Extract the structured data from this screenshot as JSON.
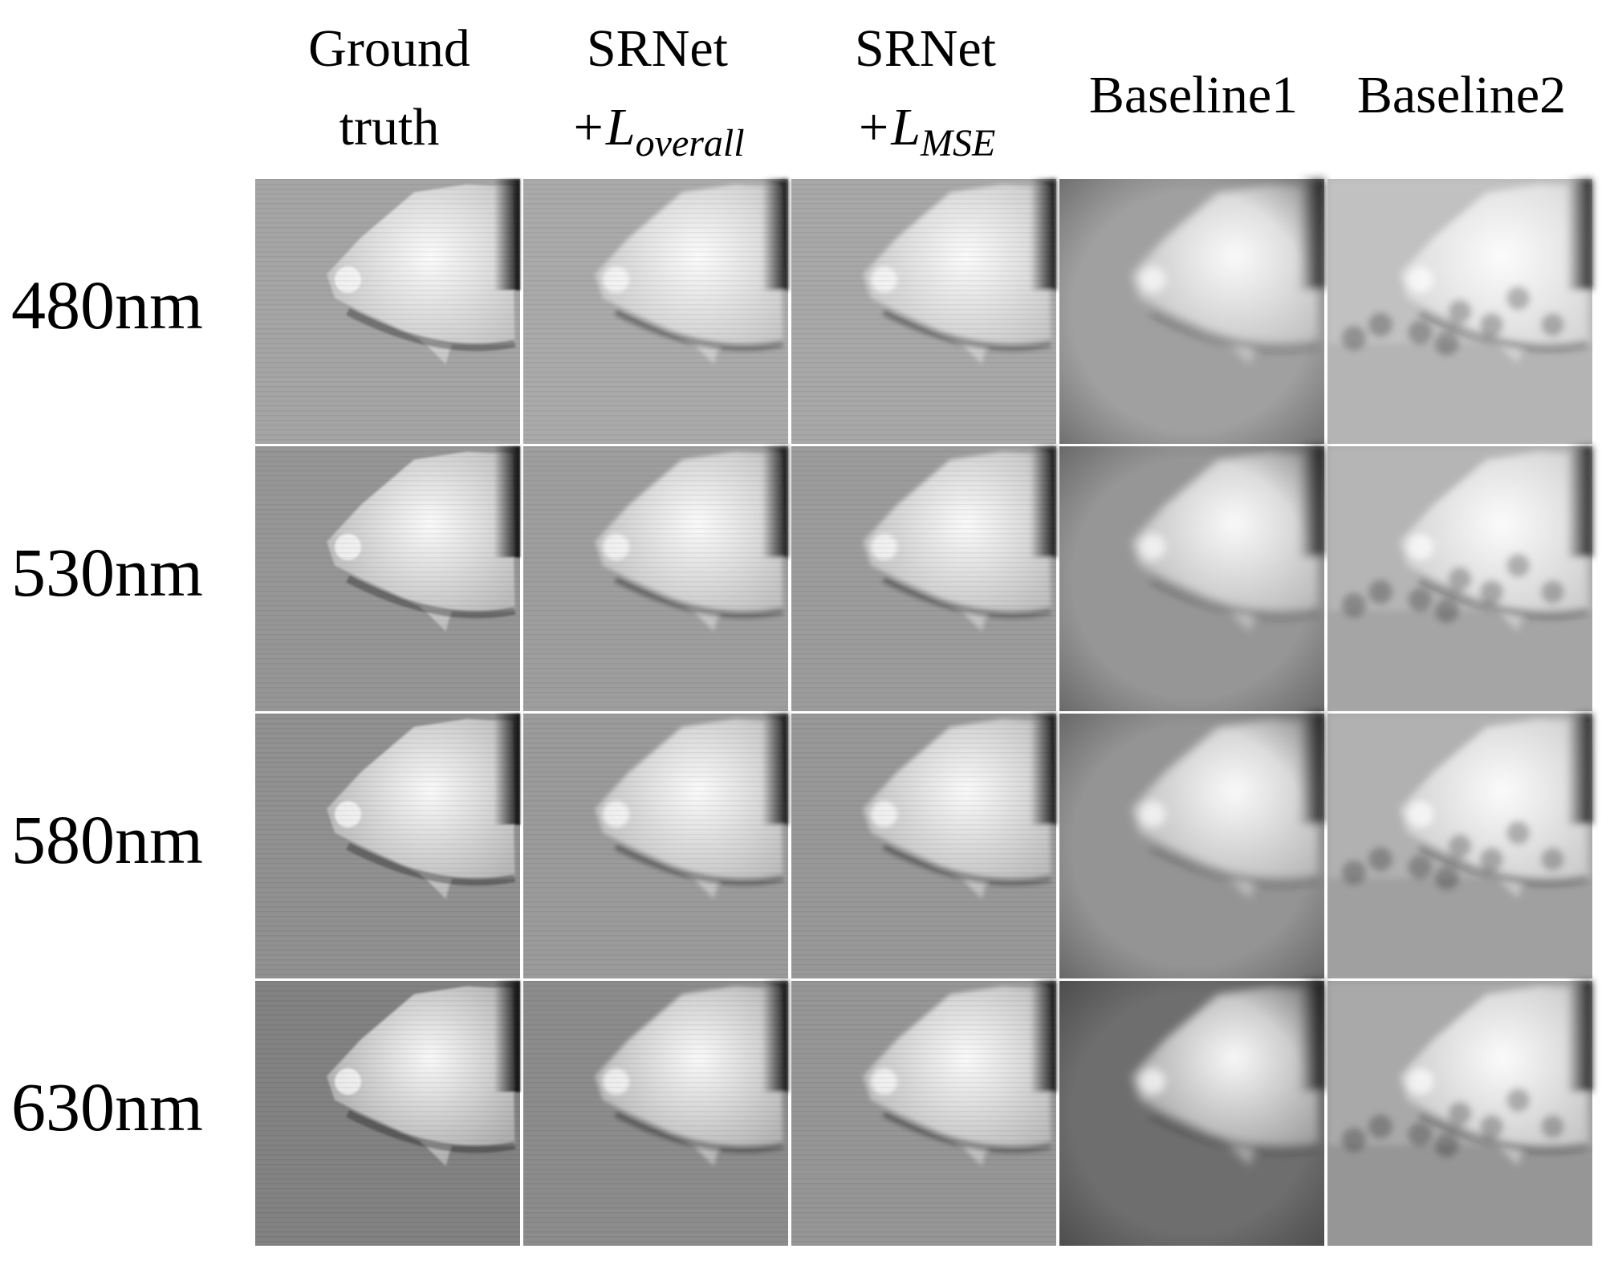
{
  "header": {
    "columns": [
      {
        "lines": [
          "Ground",
          "truth"
        ]
      },
      {
        "lines": [
          "SRNet"
        ],
        "math": {
          "base": "+L",
          "sub": "overall"
        }
      },
      {
        "lines": [
          "SRNet"
        ],
        "math": {
          "base": "+L",
          "sub": "MSE"
        }
      },
      {
        "lines": [
          "Baseline1"
        ]
      },
      {
        "lines": [
          "Baseline2"
        ]
      }
    ]
  },
  "rows": [
    "480nm",
    "530nm",
    "580nm",
    "630nm"
  ]
}
